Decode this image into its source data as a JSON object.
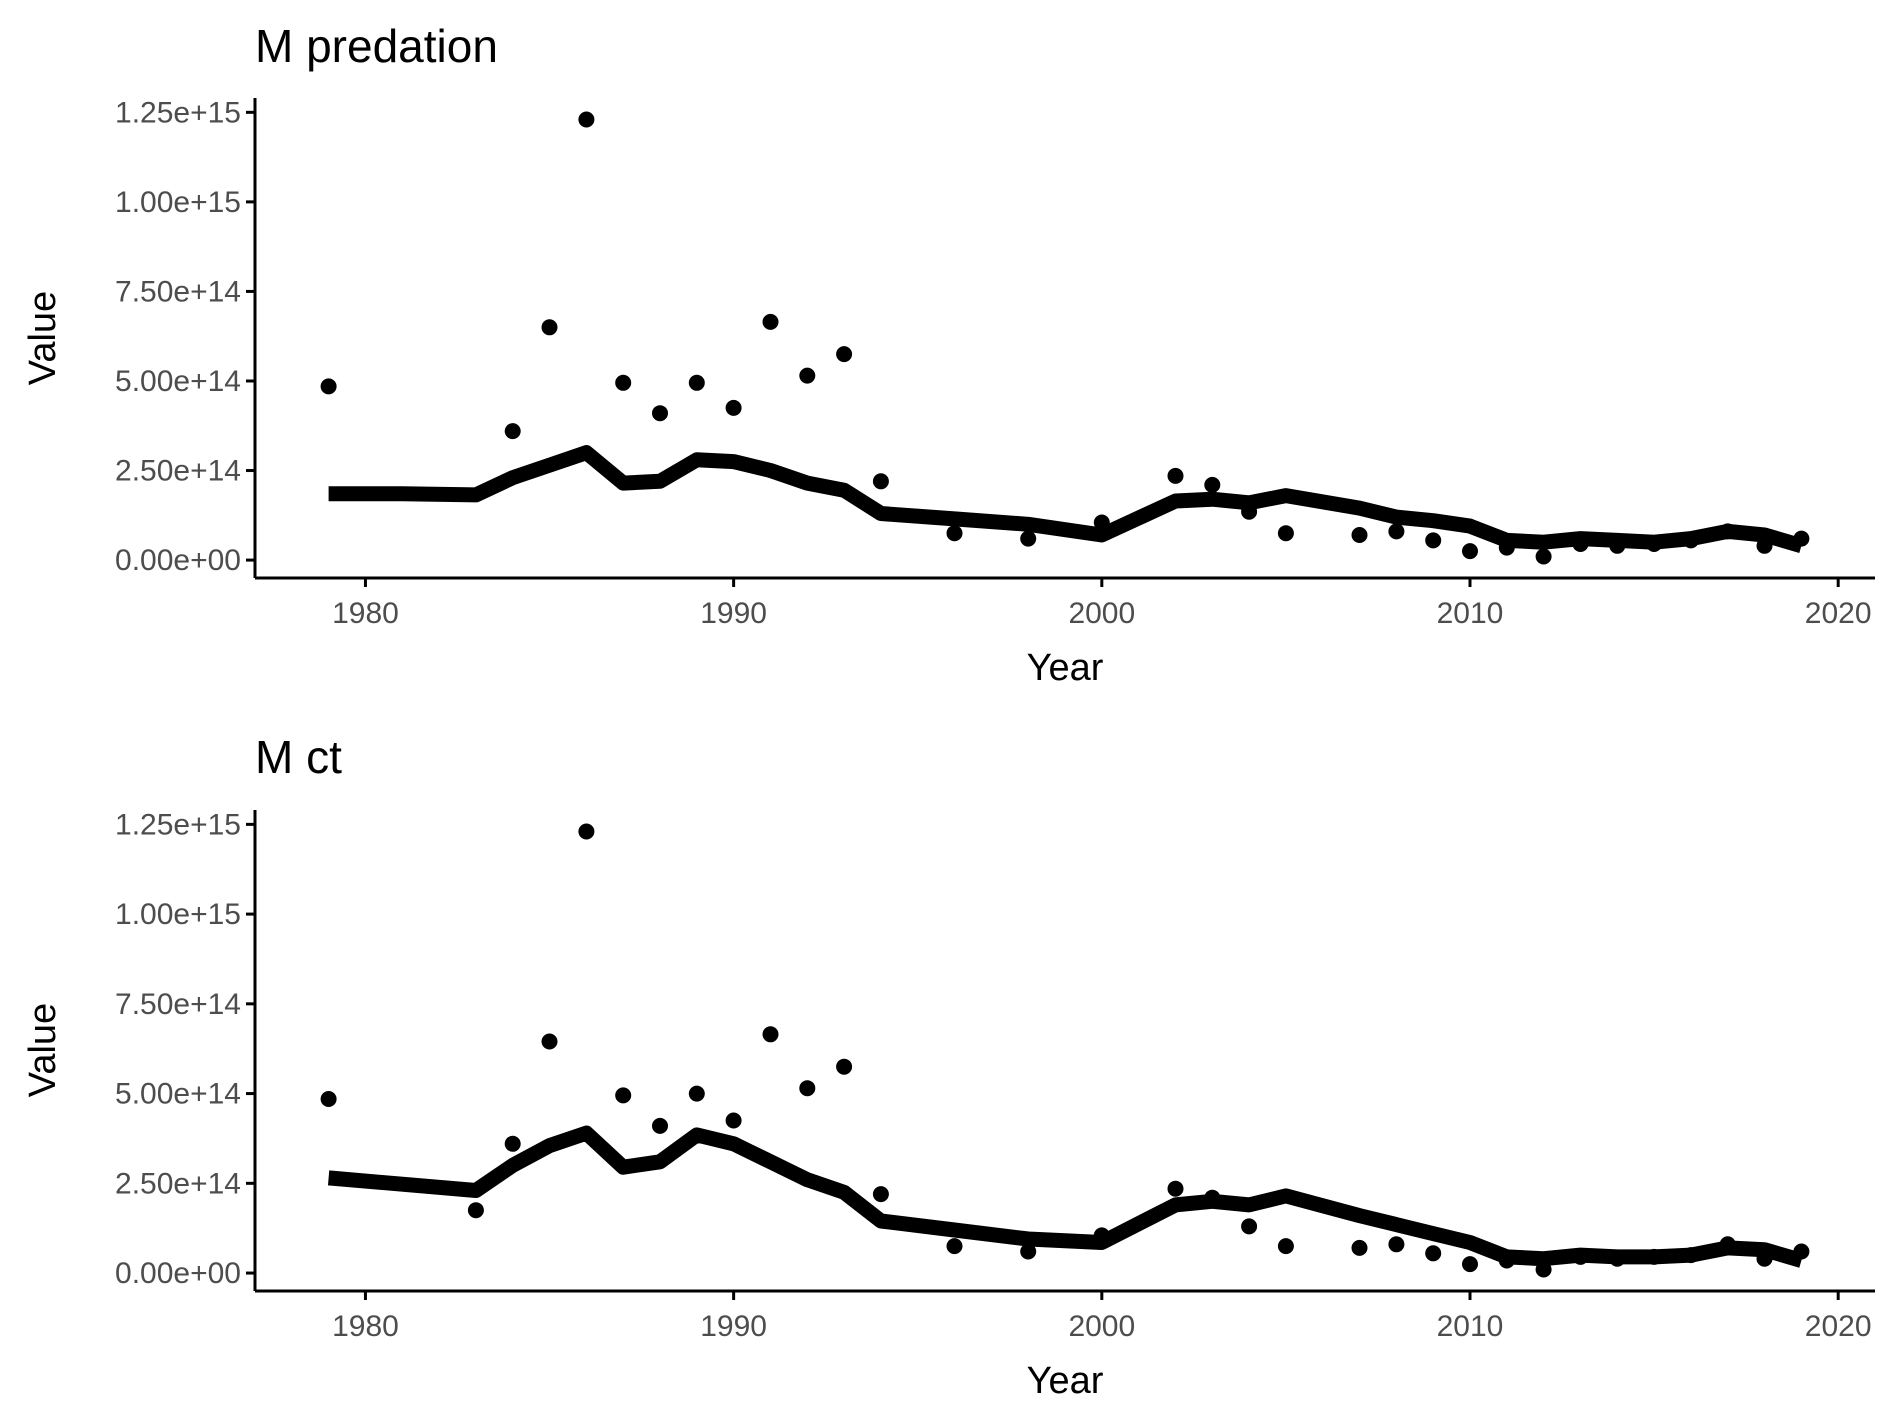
{
  "colors": {
    "background": "#ffffff",
    "ink": "#000000",
    "tick_text": "#4d4d4d"
  },
  "chart_data": [
    {
      "type": "scatter",
      "title": "M predation",
      "xlabel": "Year",
      "ylabel": "Value",
      "xlim": [
        1977,
        2021
      ],
      "ylim": [
        -50000000000000.0,
        1290000000000000.0
      ],
      "xticks": [
        1980,
        1990,
        2000,
        2010,
        2020
      ],
      "xtick_labels": [
        "1980",
        "1990",
        "2000",
        "2010",
        "2020"
      ],
      "yticks": [
        0,
        250000000000000.0,
        500000000000000.0,
        750000000000000.0,
        1000000000000000.0,
        1250000000000000.0
      ],
      "ytick_labels": [
        "0.00e+00",
        "2.50e+14",
        "5.00e+14",
        "7.50e+14",
        "1.00e+15",
        "1.25e+15"
      ],
      "grid": false,
      "series": [
        {
          "type": "scatter",
          "x": [
            1979,
            1984,
            1985,
            1986,
            1987,
            1988,
            1989,
            1990,
            1991,
            1992,
            1993,
            1994,
            1996,
            1998,
            2000,
            2002,
            2003,
            2004,
            2005,
            2007,
            2008,
            2009,
            2010,
            2011,
            2012,
            2013,
            2014,
            2015,
            2016,
            2017,
            2018,
            2019
          ],
          "y": [
            485000000000000.0,
            360000000000000.0,
            650000000000000.0,
            1230000000000000.0,
            495000000000000.0,
            410000000000000.0,
            495000000000000.0,
            425000000000000.0,
            665000000000000.0,
            515000000000000.0,
            575000000000000.0,
            220000000000000.0,
            75000000000000.0,
            60000000000000.0,
            105000000000000.0,
            235000000000000.0,
            210000000000000.0,
            135000000000000.0,
            75000000000000.0,
            70000000000000.0,
            80000000000000.0,
            55000000000000.0,
            25000000000000.0,
            35000000000000.0,
            10000000000000.0,
            45000000000000.0,
            40000000000000.0,
            45000000000000.0,
            55000000000000.0,
            80000000000000.0,
            40000000000000.0,
            60000000000000.0
          ]
        },
        {
          "type": "line",
          "x": [
            1979,
            1981,
            1983,
            1984,
            1985,
            1986,
            1987,
            1988,
            1989,
            1990,
            1991,
            1992,
            1993,
            1994,
            1996,
            1998,
            2000,
            2002,
            2003,
            2004,
            2005,
            2007,
            2008,
            2009,
            2010,
            2011,
            2012,
            2013,
            2014,
            2015,
            2016,
            2017,
            2018,
            2019
          ],
          "y": [
            185000000000000.0,
            185000000000000.0,
            182000000000000.0,
            230000000000000.0,
            265000000000000.0,
            300000000000000.0,
            215000000000000.0,
            220000000000000.0,
            280000000000000.0,
            275000000000000.0,
            250000000000000.0,
            215000000000000.0,
            195000000000000.0,
            130000000000000.0,
            115000000000000.0,
            100000000000000.0,
            70000000000000.0,
            165000000000000.0,
            170000000000000.0,
            160000000000000.0,
            180000000000000.0,
            145000000000000.0,
            120000000000000.0,
            110000000000000.0,
            95000000000000.0,
            55000000000000.0,
            50000000000000.0,
            60000000000000.0,
            55000000000000.0,
            50000000000000.0,
            60000000000000.0,
            80000000000000.0,
            70000000000000.0,
            40000000000000.0
          ]
        }
      ]
    },
    {
      "type": "scatter",
      "title": "M ct",
      "xlabel": "Year",
      "ylabel": "Value",
      "xlim": [
        1977,
        2021
      ],
      "ylim": [
        -50000000000000.0,
        1290000000000000.0
      ],
      "xticks": [
        1980,
        1990,
        2000,
        2010,
        2020
      ],
      "xtick_labels": [
        "1980",
        "1990",
        "2000",
        "2010",
        "2020"
      ],
      "yticks": [
        0,
        250000000000000.0,
        500000000000000.0,
        750000000000000.0,
        1000000000000000.0,
        1250000000000000.0
      ],
      "ytick_labels": [
        "0.00e+00",
        "2.50e+14",
        "5.00e+14",
        "7.50e+14",
        "1.00e+15",
        "1.25e+15"
      ],
      "grid": false,
      "series": [
        {
          "type": "scatter",
          "x": [
            1979,
            1983,
            1984,
            1985,
            1986,
            1987,
            1988,
            1989,
            1990,
            1991,
            1992,
            1993,
            1994,
            1996,
            1998,
            2000,
            2002,
            2003,
            2004,
            2005,
            2007,
            2008,
            2009,
            2010,
            2011,
            2012,
            2013,
            2014,
            2015,
            2016,
            2017,
            2018,
            2019
          ],
          "y": [
            485000000000000.0,
            175000000000000.0,
            360000000000000.0,
            645000000000000.0,
            1230000000000000.0,
            495000000000000.0,
            410000000000000.0,
            500000000000000.0,
            425000000000000.0,
            665000000000000.0,
            515000000000000.0,
            575000000000000.0,
            220000000000000.0,
            75000000000000.0,
            60000000000000.0,
            105000000000000.0,
            235000000000000.0,
            210000000000000.0,
            130000000000000.0,
            75000000000000.0,
            70000000000000.0,
            80000000000000.0,
            55000000000000.0,
            25000000000000.0,
            35000000000000.0,
            10000000000000.0,
            45000000000000.0,
            40000000000000.0,
            45000000000000.0,
            50000000000000.0,
            80000000000000.0,
            40000000000000.0,
            60000000000000.0
          ]
        },
        {
          "type": "line",
          "x": [
            1979,
            1983,
            1984,
            1985,
            1986,
            1987,
            1988,
            1989,
            1990,
            1991,
            1992,
            1993,
            1994,
            1996,
            1998,
            2000,
            2002,
            2003,
            2004,
            2005,
            2007,
            2008,
            2009,
            2010,
            2011,
            2012,
            2013,
            2014,
            2015,
            2016,
            2017,
            2018,
            2019
          ],
          "y": [
            265000000000000.0,
            230000000000000.0,
            300000000000000.0,
            355000000000000.0,
            390000000000000.0,
            295000000000000.0,
            310000000000000.0,
            385000000000000.0,
            360000000000000.0,
            310000000000000.0,
            260000000000000.0,
            225000000000000.0,
            145000000000000.0,
            120000000000000.0,
            95000000000000.0,
            85000000000000.0,
            190000000000000.0,
            200000000000000.0,
            190000000000000.0,
            215000000000000.0,
            160000000000000.0,
            135000000000000.0,
            110000000000000.0,
            85000000000000.0,
            45000000000000.0,
            40000000000000.0,
            50000000000000.0,
            45000000000000.0,
            45000000000000.0,
            50000000000000.0,
            70000000000000.0,
            65000000000000.0,
            35000000000000.0
          ]
        }
      ]
    }
  ]
}
